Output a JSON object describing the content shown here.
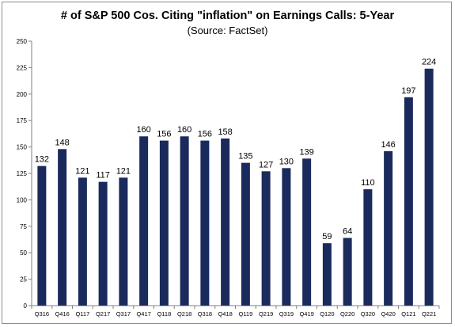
{
  "chart_data": {
    "type": "bar",
    "title": "# of S&P 500 Cos. Citing \"inflation\" on Earnings Calls: 5-Year",
    "subtitle": "(Source: FactSet)",
    "xlabel": "",
    "ylabel": "",
    "ylim": [
      0,
      250
    ],
    "yticks": [
      0,
      25,
      50,
      75,
      100,
      125,
      150,
      175,
      200,
      225,
      250
    ],
    "grid": false,
    "legend": "none",
    "bar_color": "#1b2a5c",
    "categories": [
      "Q316",
      "Q416",
      "Q117",
      "Q217",
      "Q317",
      "Q417",
      "Q118",
      "Q218",
      "Q318",
      "Q418",
      "Q119",
      "Q219",
      "Q319",
      "Q419",
      "Q120",
      "Q220",
      "Q320",
      "Q420",
      "Q121",
      "Q221"
    ],
    "values": [
      132,
      148,
      121,
      117,
      121,
      160,
      156,
      160,
      156,
      158,
      135,
      127,
      130,
      139,
      59,
      64,
      110,
      146,
      197,
      224
    ]
  }
}
